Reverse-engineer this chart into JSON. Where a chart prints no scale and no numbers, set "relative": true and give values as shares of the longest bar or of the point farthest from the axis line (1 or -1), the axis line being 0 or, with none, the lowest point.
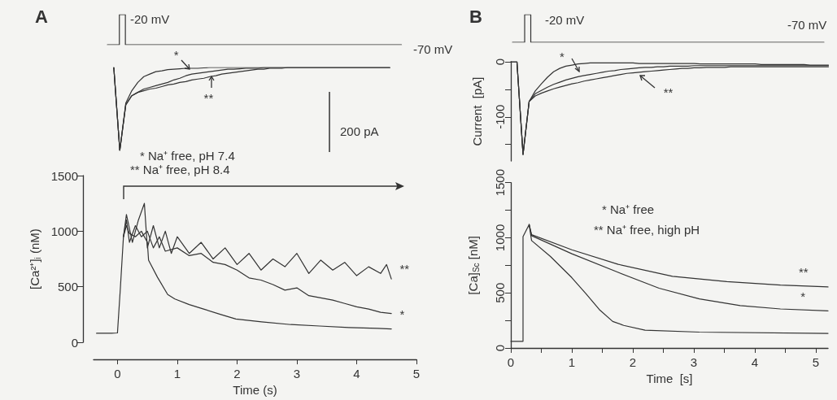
{
  "chart_data": [
    {
      "type": "step",
      "title": "A",
      "relative": true,
      "grid": false,
      "marker": "none",
      "line_style": "solid",
      "categories": [
        null,
        null,
        null,
        null,
        null,
        null,
        null,
        null,
        null,
        null,
        null,
        null,
        null,
        null,
        null,
        null,
        null,
        null,
        null,
        null,
        null,
        null,
        null,
        null,
        null,
        null,
        null,
        null,
        null,
        null,
        null,
        null,
        null,
        null,
        null,
        null,
        null,
        null,
        null,
        null,
        null,
        null,
        null,
        null,
        null,
        null,
        null,
        null,
        null,
        null
      ],
      "series": [
        {
          "color": "#333333",
          "values": [
            0,
            0,
            1,
            0,
            0,
            0,
            0,
            0,
            0,
            0,
            0,
            0,
            0,
            0,
            0,
            0,
            0,
            0,
            0,
            0,
            0,
            0,
            0,
            0,
            0,
            0,
            0,
            0,
            0,
            0,
            0,
            0,
            0,
            0,
            0,
            0,
            0,
            0,
            0,
            0,
            0,
            0,
            0,
            0,
            0,
            0,
            0,
            0,
            0,
            0
          ]
        }
      ],
      "annotations": [
        "-20 mV",
        "-70 mV"
      ]
    },
    {
      "type": "line",
      "relative": true,
      "grid": false,
      "marker": "none",
      "line_style": "solid",
      "categories": [
        null,
        null,
        null,
        null,
        null,
        null,
        null,
        null,
        null,
        null,
        null,
        null,
        null,
        null,
        null,
        null,
        null,
        null,
        null,
        null,
        null,
        null,
        null,
        null,
        null,
        null,
        null,
        null,
        null,
        null,
        null,
        null,
        null,
        null,
        null,
        null,
        null,
        null,
        null,
        null,
        null,
        null,
        null,
        null,
        null,
        null,
        null
      ],
      "series": [
        {
          "color": "#333333",
          "values": [
            1,
            0,
            0.57,
            0.72,
            0.82,
            0.89,
            0.92,
            0.95,
            0.96,
            0.975,
            0.98,
            0.985,
            0.99,
            0.99,
            0.99,
            0.995,
            1,
            1,
            1,
            1,
            1,
            1,
            1,
            1,
            1,
            1,
            1,
            1,
            1,
            1,
            1,
            1,
            1,
            1,
            1,
            1,
            1,
            1,
            1,
            1,
            1,
            1,
            1,
            1,
            1,
            1,
            1
          ]
        },
        {
          "name": "*",
          "color": "#333333",
          "values": [
            1,
            0,
            0.55,
            0.66,
            0.7,
            0.74,
            0.76,
            0.78,
            0.8,
            0.82,
            0.85,
            0.87,
            0.9,
            0.92,
            0.93,
            0.94,
            0.95,
            0.96,
            0.97,
            0.98,
            0.98,
            0.985,
            0.99,
            0.99,
            0.99,
            1,
            1,
            1,
            1,
            1,
            1,
            1,
            1,
            1,
            1,
            1,
            1,
            1,
            1,
            1,
            1,
            1,
            1,
            1,
            1,
            1,
            1
          ]
        },
        {
          "name": "**",
          "color": "#333333",
          "values": [
            1,
            0,
            0.55,
            0.66,
            0.7,
            0.72,
            0.74,
            0.75,
            0.77,
            0.79,
            0.8,
            0.82,
            0.83,
            0.85,
            0.86,
            0.87,
            0.89,
            0.9,
            0.92,
            0.93,
            0.94,
            0.95,
            0.96,
            0.97,
            0.98,
            0.98,
            0.99,
            0.99,
            0.99,
            1,
            1,
            1,
            1,
            1,
            1,
            1,
            1,
            1,
            1,
            1,
            1,
            1,
            1,
            1,
            1,
            1,
            1
          ]
        }
      ],
      "annotations": [
        "200 pA"
      ]
    },
    {
      "type": "line",
      "xlabel": "Time (s)",
      "ylabel": "[Ca²⁺]$_{i}$ (nM)",
      "xlim": [
        -0.4,
        5
      ],
      "xticks": [
        0,
        1,
        2,
        3,
        4,
        5
      ],
      "ylim": [
        0,
        1500
      ],
      "yticks": [
        0,
        500,
        1000,
        1500
      ],
      "grid": false,
      "marker": "none",
      "line_style": "solid",
      "series": [
        {
          "color": "#333333",
          "x": [
            -0.35,
            -0.1,
            0,
            0.05,
            0.1,
            0.15,
            0.2,
            0.3,
            0.4,
            0.5,
            0.52,
            0.67,
            0.84,
            0.96,
            1.2,
            1.44,
            1.73,
            1.98,
            2.41,
            2.9,
            3.38,
            3.87,
            4.35,
            4.58
          ],
          "values": [
            82,
            82,
            85,
            500,
            950,
            1050,
            980,
            950,
            1000,
            900,
            740,
            585,
            430,
            390,
            340,
            300,
            250,
            210,
            185,
            160,
            147,
            134,
            126,
            121
          ]
        },
        {
          "name": "*",
          "color": "#333333",
          "x": [
            0.1,
            0.15,
            0.2,
            0.3,
            0.4,
            0.5,
            0.6,
            0.7,
            0.8,
            1.0,
            1.2,
            1.4,
            1.6,
            1.8,
            2.0,
            2.2,
            2.4,
            2.6,
            2.8,
            3.0,
            3.2,
            3.4,
            3.6,
            3.8,
            4.0,
            4.2,
            4.4,
            4.58
          ],
          "values": [
            950,
            1100,
            900,
            1050,
            950,
            1000,
            850,
            950,
            820,
            850,
            780,
            800,
            720,
            700,
            650,
            580,
            560,
            520,
            470,
            490,
            420,
            400,
            380,
            350,
            320,
            300,
            270,
            260
          ]
        },
        {
          "name": "**",
          "color": "#333333",
          "x": [
            0.1,
            0.15,
            0.25,
            0.35,
            0.45,
            0.5,
            0.6,
            0.7,
            0.8,
            0.9,
            1.0,
            1.2,
            1.4,
            1.6,
            1.8,
            2.0,
            2.2,
            2.4,
            2.6,
            2.8,
            3.0,
            3.2,
            3.4,
            3.6,
            3.8,
            4.0,
            4.2,
            4.4,
            4.5,
            4.58
          ],
          "values": [
            950,
            1150,
            900,
            1100,
            1250,
            850,
            1050,
            850,
            1000,
            800,
            950,
            800,
            900,
            750,
            850,
            700,
            800,
            650,
            750,
            680,
            800,
            620,
            740,
            650,
            720,
            600,
            680,
            620,
            700,
            570
          ]
        }
      ],
      "annotations": [
        "* Na⁺ free, pH 7.4",
        "** Na⁺ free, pH 8.4"
      ]
    },
    {
      "type": "step",
      "title": "B",
      "relative": true,
      "grid": false,
      "marker": "none",
      "line_style": "solid",
      "categories": [
        null,
        null,
        null,
        null,
        null,
        null,
        null,
        null,
        null,
        null,
        null,
        null,
        null,
        null,
        null,
        null,
        null,
        null,
        null,
        null,
        null,
        null,
        null,
        null,
        null,
        null,
        null,
        null,
        null,
        null,
        null,
        null,
        null,
        null,
        null,
        null,
        null,
        null,
        null,
        null,
        null,
        null,
        null,
        null,
        null,
        null,
        null,
        null,
        null,
        null,
        null,
        null
      ],
      "series": [
        {
          "color": "#333333",
          "values": [
            0,
            0,
            1,
            0,
            0,
            0,
            0,
            0,
            0,
            0,
            0,
            0,
            0,
            0,
            0,
            0,
            0,
            0,
            0,
            0,
            0,
            0,
            0,
            0,
            0,
            0,
            0,
            0,
            0,
            0,
            0,
            0,
            0,
            0,
            0,
            0,
            0,
            0,
            0,
            0,
            0,
            0,
            0,
            0,
            0,
            0,
            0,
            0,
            0,
            0,
            0,
            0
          ]
        }
      ],
      "annotations": [
        "-20 mV",
        "-70 mV"
      ]
    },
    {
      "type": "line",
      "ylabel": "Current  [pA]",
      "ylim": [
        -180,
        0
      ],
      "yticks": [
        0,
        {
          "value": -50,
          "label": null
        },
        -100,
        {
          "value": -150,
          "label": null
        }
      ],
      "tick_labels": "y",
      "grid": false,
      "marker": "none",
      "line_style": "solid",
      "categories": [
        null,
        null,
        null,
        null,
        null,
        null,
        null,
        null,
        null,
        null,
        null,
        null,
        null,
        null,
        null,
        null,
        null,
        null,
        null,
        null,
        null,
        null,
        null,
        null,
        null,
        null,
        null,
        null,
        null,
        null,
        null,
        null,
        null,
        null,
        null,
        null,
        null,
        null,
        null,
        null,
        null,
        null,
        null,
        null,
        null,
        null,
        null,
        null,
        null,
        null,
        null,
        null,
        null
      ],
      "series": [
        {
          "color": "#333333",
          "values": [
            0,
            0,
            -168,
            -72,
            -53,
            -40,
            -28,
            -18,
            -12,
            -8,
            -6,
            -4,
            -3,
            -2,
            -2,
            -2,
            -2,
            -2,
            -2,
            -2,
            -2,
            -3,
            -3,
            -3,
            -3,
            -3,
            -3,
            -3,
            -3,
            -3,
            -3,
            -4,
            -4,
            -4,
            -4,
            -4,
            -4,
            -4,
            -4,
            -4,
            -4,
            -5,
            -5,
            -5,
            -5,
            -5,
            -5,
            -5,
            -5,
            -6,
            -6,
            -6,
            -6
          ]
        },
        {
          "name": "*",
          "color": "#333333",
          "values": [
            0,
            0,
            -168,
            -72,
            -58,
            -52,
            -46,
            -41,
            -37,
            -33,
            -30,
            -27,
            -25,
            -23,
            -21,
            -19,
            -17,
            -16,
            -14,
            -13,
            -12,
            -11,
            -10,
            -10,
            -9,
            -9,
            -8,
            -8,
            -8,
            -8,
            -7,
            -7,
            -7,
            -7,
            -7,
            -7,
            -7,
            -7,
            -7,
            -7,
            -7,
            -7,
            -7,
            -7,
            -7,
            -7,
            -7,
            -7,
            -7,
            -7,
            -7,
            -7,
            -7
          ]
        },
        {
          "name": "**",
          "color": "#333333",
          "values": [
            0,
            0,
            -168,
            -72,
            -62,
            -57,
            -53,
            -49,
            -46,
            -43,
            -40,
            -38,
            -35,
            -33,
            -31,
            -29,
            -27,
            -25,
            -23,
            -21,
            -20,
            -19,
            -18,
            -17,
            -16,
            -15,
            -14,
            -13,
            -12,
            -12,
            -11,
            -11,
            -10,
            -10,
            -10,
            -10,
            -9,
            -9,
            -9,
            -9,
            -9,
            -9,
            -9,
            -9,
            -9,
            -9,
            -9,
            -9,
            -9,
            -9,
            -9,
            -9,
            -9
          ]
        }
      ]
    },
    {
      "type": "line",
      "xlabel": "Time  [s]",
      "ylabel": "[Ca]$_{Sc}$ [nM]",
      "xlim": [
        0,
        5.2
      ],
      "xticks": [
        0,
        {
          "value": 0.5,
          "label": null
        },
        1,
        {
          "value": 1.5,
          "label": null
        },
        2,
        {
          "value": 2.5,
          "label": null
        },
        3,
        {
          "value": 3.5,
          "label": null
        },
        4,
        {
          "value": 4.5,
          "label": null
        },
        5
      ],
      "ylim": [
        0,
        1500
      ],
      "yticks": [
        0,
        {
          "value": 250,
          "label": null
        },
        500,
        {
          "value": 750,
          "label": null
        },
        1000,
        {
          "value": 1250,
          "label": null
        },
        1500
      ],
      "grid": false,
      "marker": "none",
      "line_style": "solid",
      "series": [
        {
          "color": "#333333",
          "x": [
            0,
            0.2,
            0.2,
            0.3,
            0.34,
            0.65,
            1.0,
            1.23,
            1.45,
            1.67,
            1.85,
            2.2,
            3.09,
            5.2
          ],
          "values": [
            60,
            60,
            1010,
            1120,
            975,
            830,
            638,
            494,
            349,
            241,
            205,
            161,
            144,
            132
          ]
        },
        {
          "name": "*",
          "color": "#333333",
          "x": [
            0.3,
            0.34,
            1.0,
            1.76,
            2.43,
            3.09,
            3.76,
            4.42,
            5.2
          ],
          "values": [
            1120,
            1019,
            855,
            686,
            542,
            445,
            385,
            354,
            337
          ]
        },
        {
          "name": "**",
          "color": "#333333",
          "x": [
            0.3,
            0.34,
            1.0,
            1.76,
            2.65,
            3.54,
            4.42,
            5.2
          ],
          "values": [
            1120,
            1028,
            891,
            759,
            650,
            602,
            571,
            554
          ]
        }
      ],
      "annotations": [
        "* Na⁺ free",
        "** Na⁺ free, high pH"
      ]
    }
  ]
}
